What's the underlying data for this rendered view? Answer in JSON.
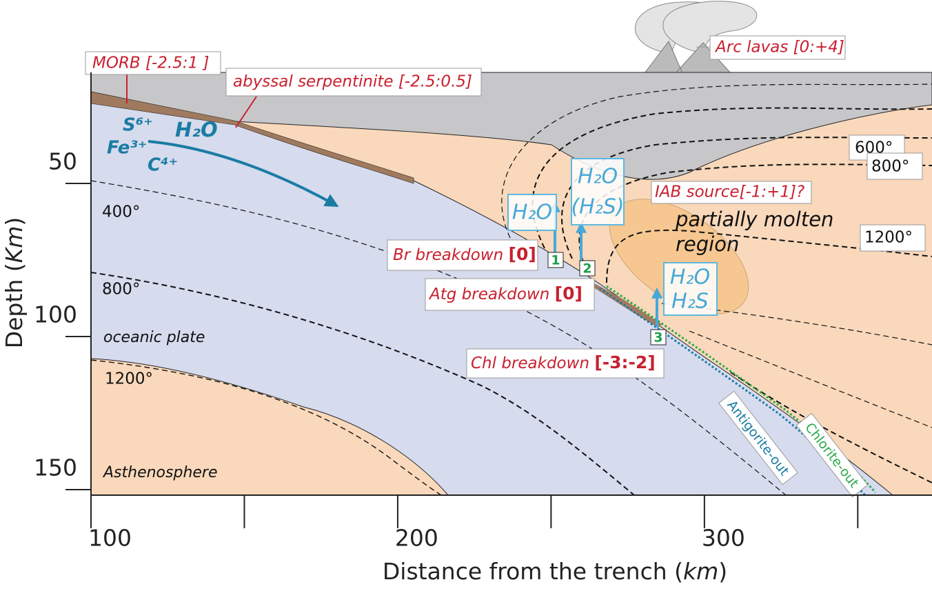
{
  "axes": {
    "x_label": [
      "Distance from the trench (",
      "km",
      ")"
    ],
    "y_label": [
      "Depth (",
      "Km",
      ")"
    ],
    "xlim": [
      100,
      374.2
    ],
    "ylim": [
      13.74,
      151.8
    ],
    "xticks": [
      100,
      200,
      300
    ],
    "xticks_minor": [
      150,
      250,
      350
    ],
    "yticks": [
      50,
      100,
      150
    ]
  },
  "labels": {
    "morb": "MORB [-2.5:1 ]",
    "serpentinite": "abyssal serpentinite [-2.5:0.5]",
    "arc_lavas": "Arc lavas [0:+4]",
    "iab_source": "IAB source[-1:+1]?",
    "molten": [
      "partially molten",
      "region"
    ],
    "oceanic_plate": "oceanic plate",
    "asthenosphere": "Asthenosphere",
    "species": [
      "S⁶⁺",
      "H₂O",
      "Fe³⁺",
      "C⁴⁺"
    ],
    "antigorite": "Antigorite-out",
    "chlorite": "Chlorite-out"
  },
  "isotherms": {
    "wedge": [
      "600°",
      "800°",
      "1200°"
    ],
    "slab": [
      "400°",
      "800°",
      "1200°"
    ]
  },
  "breakdowns": [
    {
      "marker": "1",
      "name": "Br breakdown",
      "value": "[0]",
      "fluids": [
        "H₂O"
      ]
    },
    {
      "marker": "2",
      "name": "Atg breakdown",
      "value": "[0]",
      "fluids": [
        "H₂O",
        "(H₂S)"
      ]
    },
    {
      "marker": "3",
      "name": "Chl breakdown",
      "value": "[-3:-2]",
      "fluids": [
        "H₂O",
        "H₂S"
      ]
    }
  ]
}
